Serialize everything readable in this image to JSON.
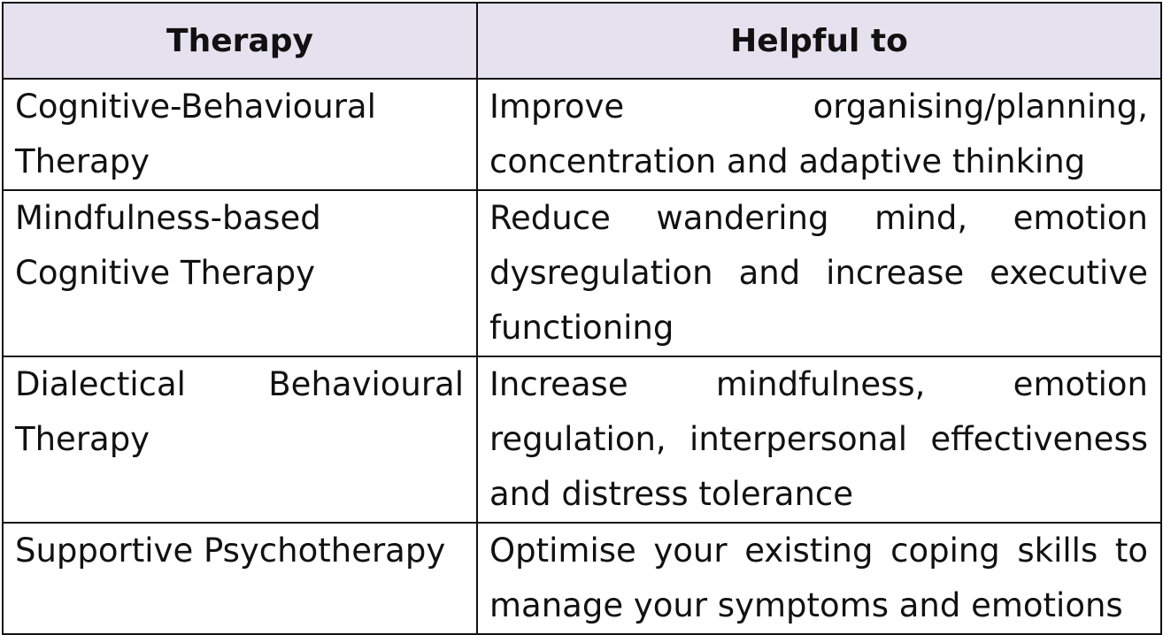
{
  "table": {
    "headers": [
      "Therapy",
      "Helpful to"
    ],
    "rows": [
      {
        "therapy": "Cognitive-Behavioural Therapy",
        "helpful_to": "Improve organising/planning, concentration and adaptive thinking"
      },
      {
        "therapy": "Mindfulness-based Cognitive Therapy",
        "helpful_to": "Reduce wandering mind, emotion dysregulation and increase executive functioning"
      },
      {
        "therapy": "Dialectical Behavioural Therapy",
        "helpful_to": "Increase mindfulness, emotion regulation, interpersonal effectiveness and distress tolerance"
      },
      {
        "therapy": "Supportive Psychotherapy",
        "helpful_to": "Optimise your existing coping skills to manage your symptoms and emotions"
      }
    ]
  }
}
